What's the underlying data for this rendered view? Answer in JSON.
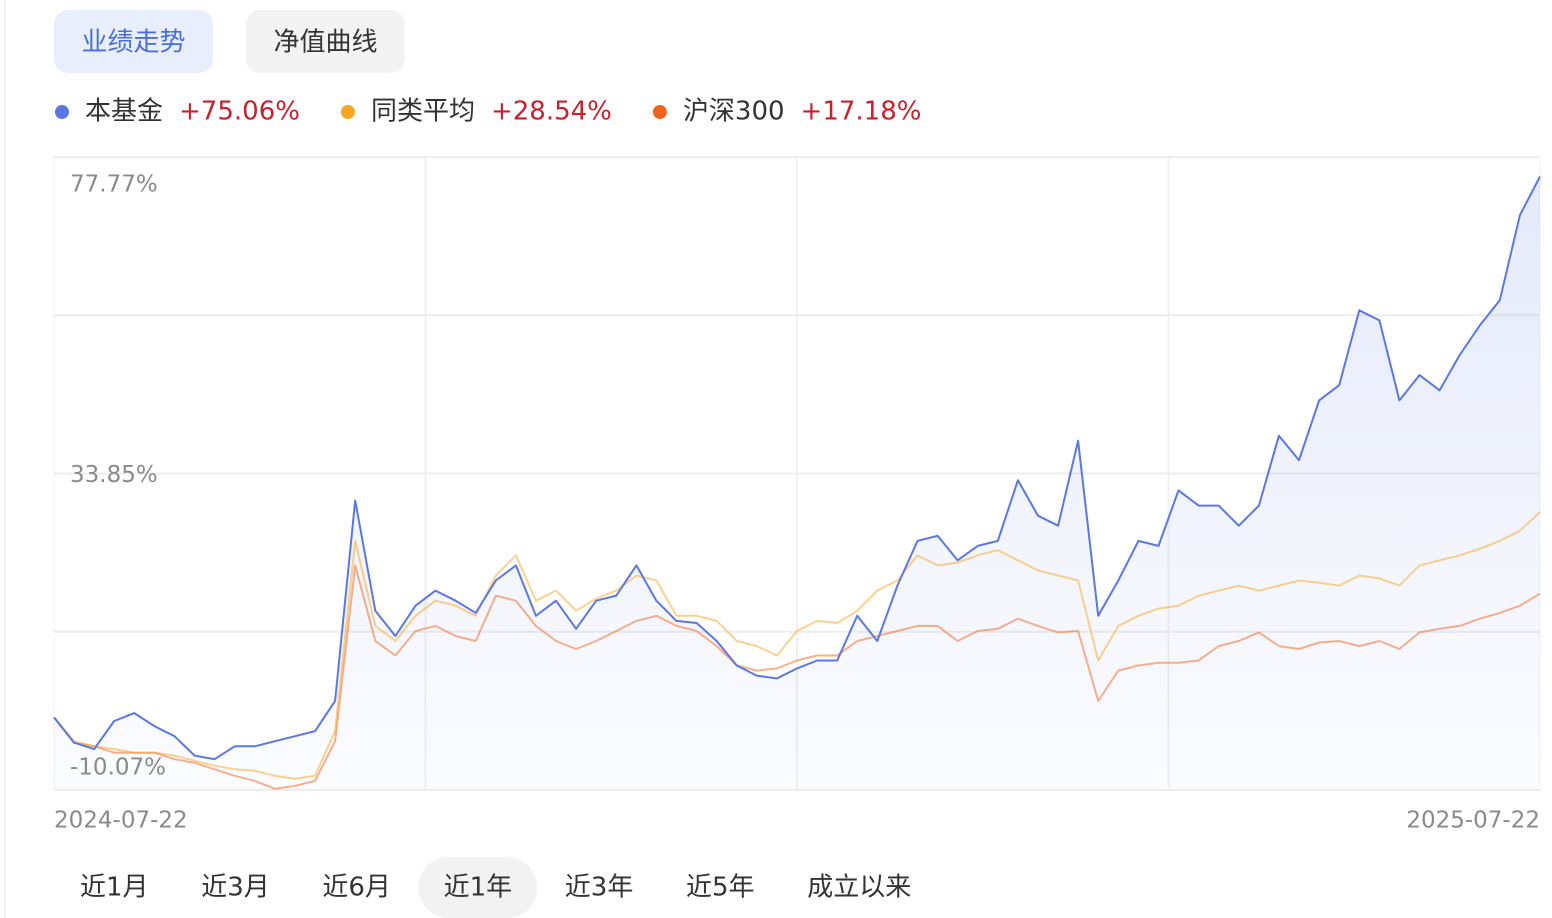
{
  "tabs": [
    {
      "label": "业绩走势",
      "selected": true
    },
    {
      "label": "净值曲线",
      "selected": false
    }
  ],
  "chart_data": {
    "type": "line",
    "categories": [
      "2024-07-22",
      null,
      null,
      null,
      null,
      null,
      null,
      null,
      null,
      null,
      null,
      null,
      null,
      null,
      null,
      null,
      null,
      null,
      null,
      null,
      null,
      null,
      null,
      null,
      null,
      null,
      null,
      null,
      null,
      null,
      null,
      null,
      null,
      null,
      null,
      null,
      null,
      null,
      null,
      null,
      null,
      null,
      null,
      null,
      null,
      null,
      null,
      null,
      null,
      null,
      null,
      null,
      null,
      null,
      null,
      null,
      null,
      null,
      null,
      null,
      null,
      null,
      null,
      null,
      null,
      null,
      null,
      null,
      null,
      null,
      null,
      null,
      null,
      null,
      "2025-07-22"
    ],
    "series": [
      {
        "name": "本基金",
        "return_label": "+75.06%",
        "color": "#5b78e2",
        "values": [
          0.0,
          -3.5,
          -4.4,
          -0.5,
          0.6,
          -1.2,
          -2.6,
          -5.3,
          -5.8,
          -4.0,
          -4.0,
          -3.3,
          -2.6,
          -1.9,
          2.3,
          30.1,
          14.8,
          11.3,
          15.5,
          17.6,
          16.2,
          14.5,
          19.0,
          21.1,
          14.1,
          16.2,
          12.3,
          16.2,
          16.9,
          21.1,
          16.2,
          13.4,
          13.1,
          10.6,
          7.2,
          5.8,
          5.4,
          6.8,
          7.9,
          7.9,
          14.1,
          10.6,
          18.3,
          24.5,
          25.2,
          21.8,
          23.8,
          24.5,
          32.9,
          28.0,
          26.6,
          38.4,
          14.1,
          19.0,
          24.5,
          23.8,
          31.5,
          29.4,
          29.4,
          26.6,
          29.4,
          39.1,
          35.7,
          44.0,
          46.1,
          56.5,
          55.1,
          44.0,
          47.5,
          45.4,
          50.3,
          54.4,
          57.9,
          69.7,
          75.06
        ]
      },
      {
        "name": "同类平均",
        "return_label": "+28.54%",
        "color": "#f5a623",
        "values": [
          0.0,
          -3.3,
          -4.0,
          -4.4,
          -4.9,
          -4.9,
          -5.3,
          -6.0,
          -6.7,
          -7.2,
          -7.4,
          -8.1,
          -8.5,
          -8.1,
          -1.9,
          24.5,
          12.7,
          10.6,
          14.1,
          16.2,
          15.5,
          14.1,
          19.7,
          22.5,
          16.2,
          17.6,
          14.8,
          16.5,
          17.6,
          19.7,
          19.0,
          14.1,
          14.1,
          13.4,
          10.6,
          9.9,
          8.6,
          12.0,
          13.4,
          13.1,
          14.8,
          17.6,
          19.0,
          22.5,
          21.1,
          21.5,
          22.5,
          23.2,
          21.8,
          20.4,
          19.7,
          19.0,
          7.9,
          12.7,
          14.1,
          15.1,
          15.5,
          16.9,
          17.6,
          18.3,
          17.6,
          18.3,
          19.0,
          18.7,
          18.3,
          19.7,
          19.3,
          18.3,
          21.1,
          21.8,
          22.5,
          23.4,
          24.5,
          25.9,
          28.54
        ]
      },
      {
        "name": "沪深300",
        "return_label": "+17.18%",
        "color": "#f0641e",
        "values": [
          0.0,
          -3.5,
          -4.0,
          -4.9,
          -4.9,
          -4.9,
          -5.8,
          -6.3,
          -7.2,
          -8.1,
          -8.8,
          -9.9,
          -9.5,
          -8.8,
          -3.3,
          21.1,
          10.6,
          8.6,
          12.0,
          12.7,
          11.3,
          10.6,
          16.9,
          16.2,
          12.7,
          10.6,
          9.5,
          10.6,
          12.0,
          13.4,
          14.1,
          12.7,
          12.0,
          9.9,
          7.2,
          6.5,
          6.8,
          7.9,
          8.6,
          8.6,
          10.6,
          11.3,
          12.0,
          12.7,
          12.7,
          10.6,
          12.0,
          12.3,
          13.7,
          12.7,
          11.8,
          12.0,
          2.3,
          6.5,
          7.2,
          7.6,
          7.6,
          7.9,
          9.9,
          10.6,
          11.8,
          9.9,
          9.5,
          10.4,
          10.6,
          9.9,
          10.6,
          9.5,
          11.8,
          12.3,
          12.7,
          13.7,
          14.5,
          15.5,
          17.18
        ]
      }
    ],
    "ylim": [
      -10.07,
      77.77
    ],
    "yticks": [
      {
        "value": 77.77,
        "label": "77.77%"
      },
      {
        "value": 33.85,
        "label": "33.85%"
      },
      {
        "value": -10.07,
        "label": "-10.07%"
      }
    ],
    "grid": true
  },
  "periods": [
    {
      "label": "近1月",
      "selected": false
    },
    {
      "label": "近3月",
      "selected": false
    },
    {
      "label": "近6月",
      "selected": false
    },
    {
      "label": "近1年",
      "selected": true
    },
    {
      "label": "近3年",
      "selected": false
    },
    {
      "label": "近5年",
      "selected": false
    },
    {
      "label": "成立以来",
      "selected": false
    }
  ]
}
